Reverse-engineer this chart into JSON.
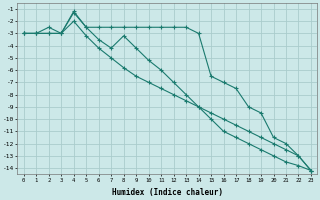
{
  "xlabel": "Humidex (Indice chaleur)",
  "bg_color": "#cce8e8",
  "grid_color": "#aacccc",
  "line_color": "#1a7a6e",
  "xlim": [
    -0.5,
    23.5
  ],
  "ylim": [
    -14.5,
    -0.5
  ],
  "xticks": [
    0,
    1,
    2,
    3,
    4,
    5,
    6,
    7,
    8,
    9,
    10,
    11,
    12,
    13,
    14,
    15,
    16,
    17,
    18,
    19,
    20,
    21,
    22,
    23
  ],
  "yticks": [
    -1,
    -2,
    -3,
    -4,
    -5,
    -6,
    -7,
    -8,
    -9,
    -10,
    -11,
    -12,
    -13,
    -14
  ],
  "series1_x": [
    0,
    1,
    2,
    3,
    4,
    5,
    6,
    7,
    8,
    9,
    10,
    11,
    12,
    13,
    14,
    15,
    16,
    17,
    18,
    19,
    20,
    21,
    22,
    23
  ],
  "series1_y": [
    -3,
    -3,
    -2.5,
    -3,
    -1.3,
    -2.5,
    -2.5,
    -2.5,
    -2.5,
    -2.5,
    -2.5,
    -2.5,
    -2.5,
    -2.5,
    -3,
    -6.5,
    -7,
    -7.5,
    -9,
    -9.5,
    -11.5,
    -12,
    -13,
    -14.2
  ],
  "series2_x": [
    0,
    1,
    2,
    3,
    4,
    5,
    6,
    7,
    8,
    9,
    10,
    11,
    12,
    13,
    14,
    15,
    16,
    17,
    18,
    19,
    20,
    21,
    22,
    23
  ],
  "series2_y": [
    -3,
    -3,
    -3,
    -3,
    -1.2,
    -2.5,
    -3.5,
    -4.2,
    -3.2,
    -4.2,
    -5.2,
    -6.0,
    -7.0,
    -8.0,
    -9.0,
    -10.0,
    -11.0,
    -11.5,
    -12.0,
    -12.5,
    -13.0,
    -13.5,
    -13.8,
    -14.2
  ],
  "series3_x": [
    0,
    1,
    2,
    3,
    4,
    5,
    6,
    7,
    8,
    9,
    10,
    11,
    12,
    13,
    14,
    15,
    16,
    17,
    18,
    19,
    20,
    21,
    22,
    23
  ],
  "series3_y": [
    -3,
    -3,
    -3,
    -3,
    -2,
    -3.2,
    -4.2,
    -5.0,
    -5.8,
    -6.5,
    -7.0,
    -7.5,
    -8.0,
    -8.5,
    -9.0,
    -9.5,
    -10.0,
    -10.5,
    -11.0,
    -11.5,
    -12.0,
    -12.5,
    -13.0,
    -14.2
  ]
}
